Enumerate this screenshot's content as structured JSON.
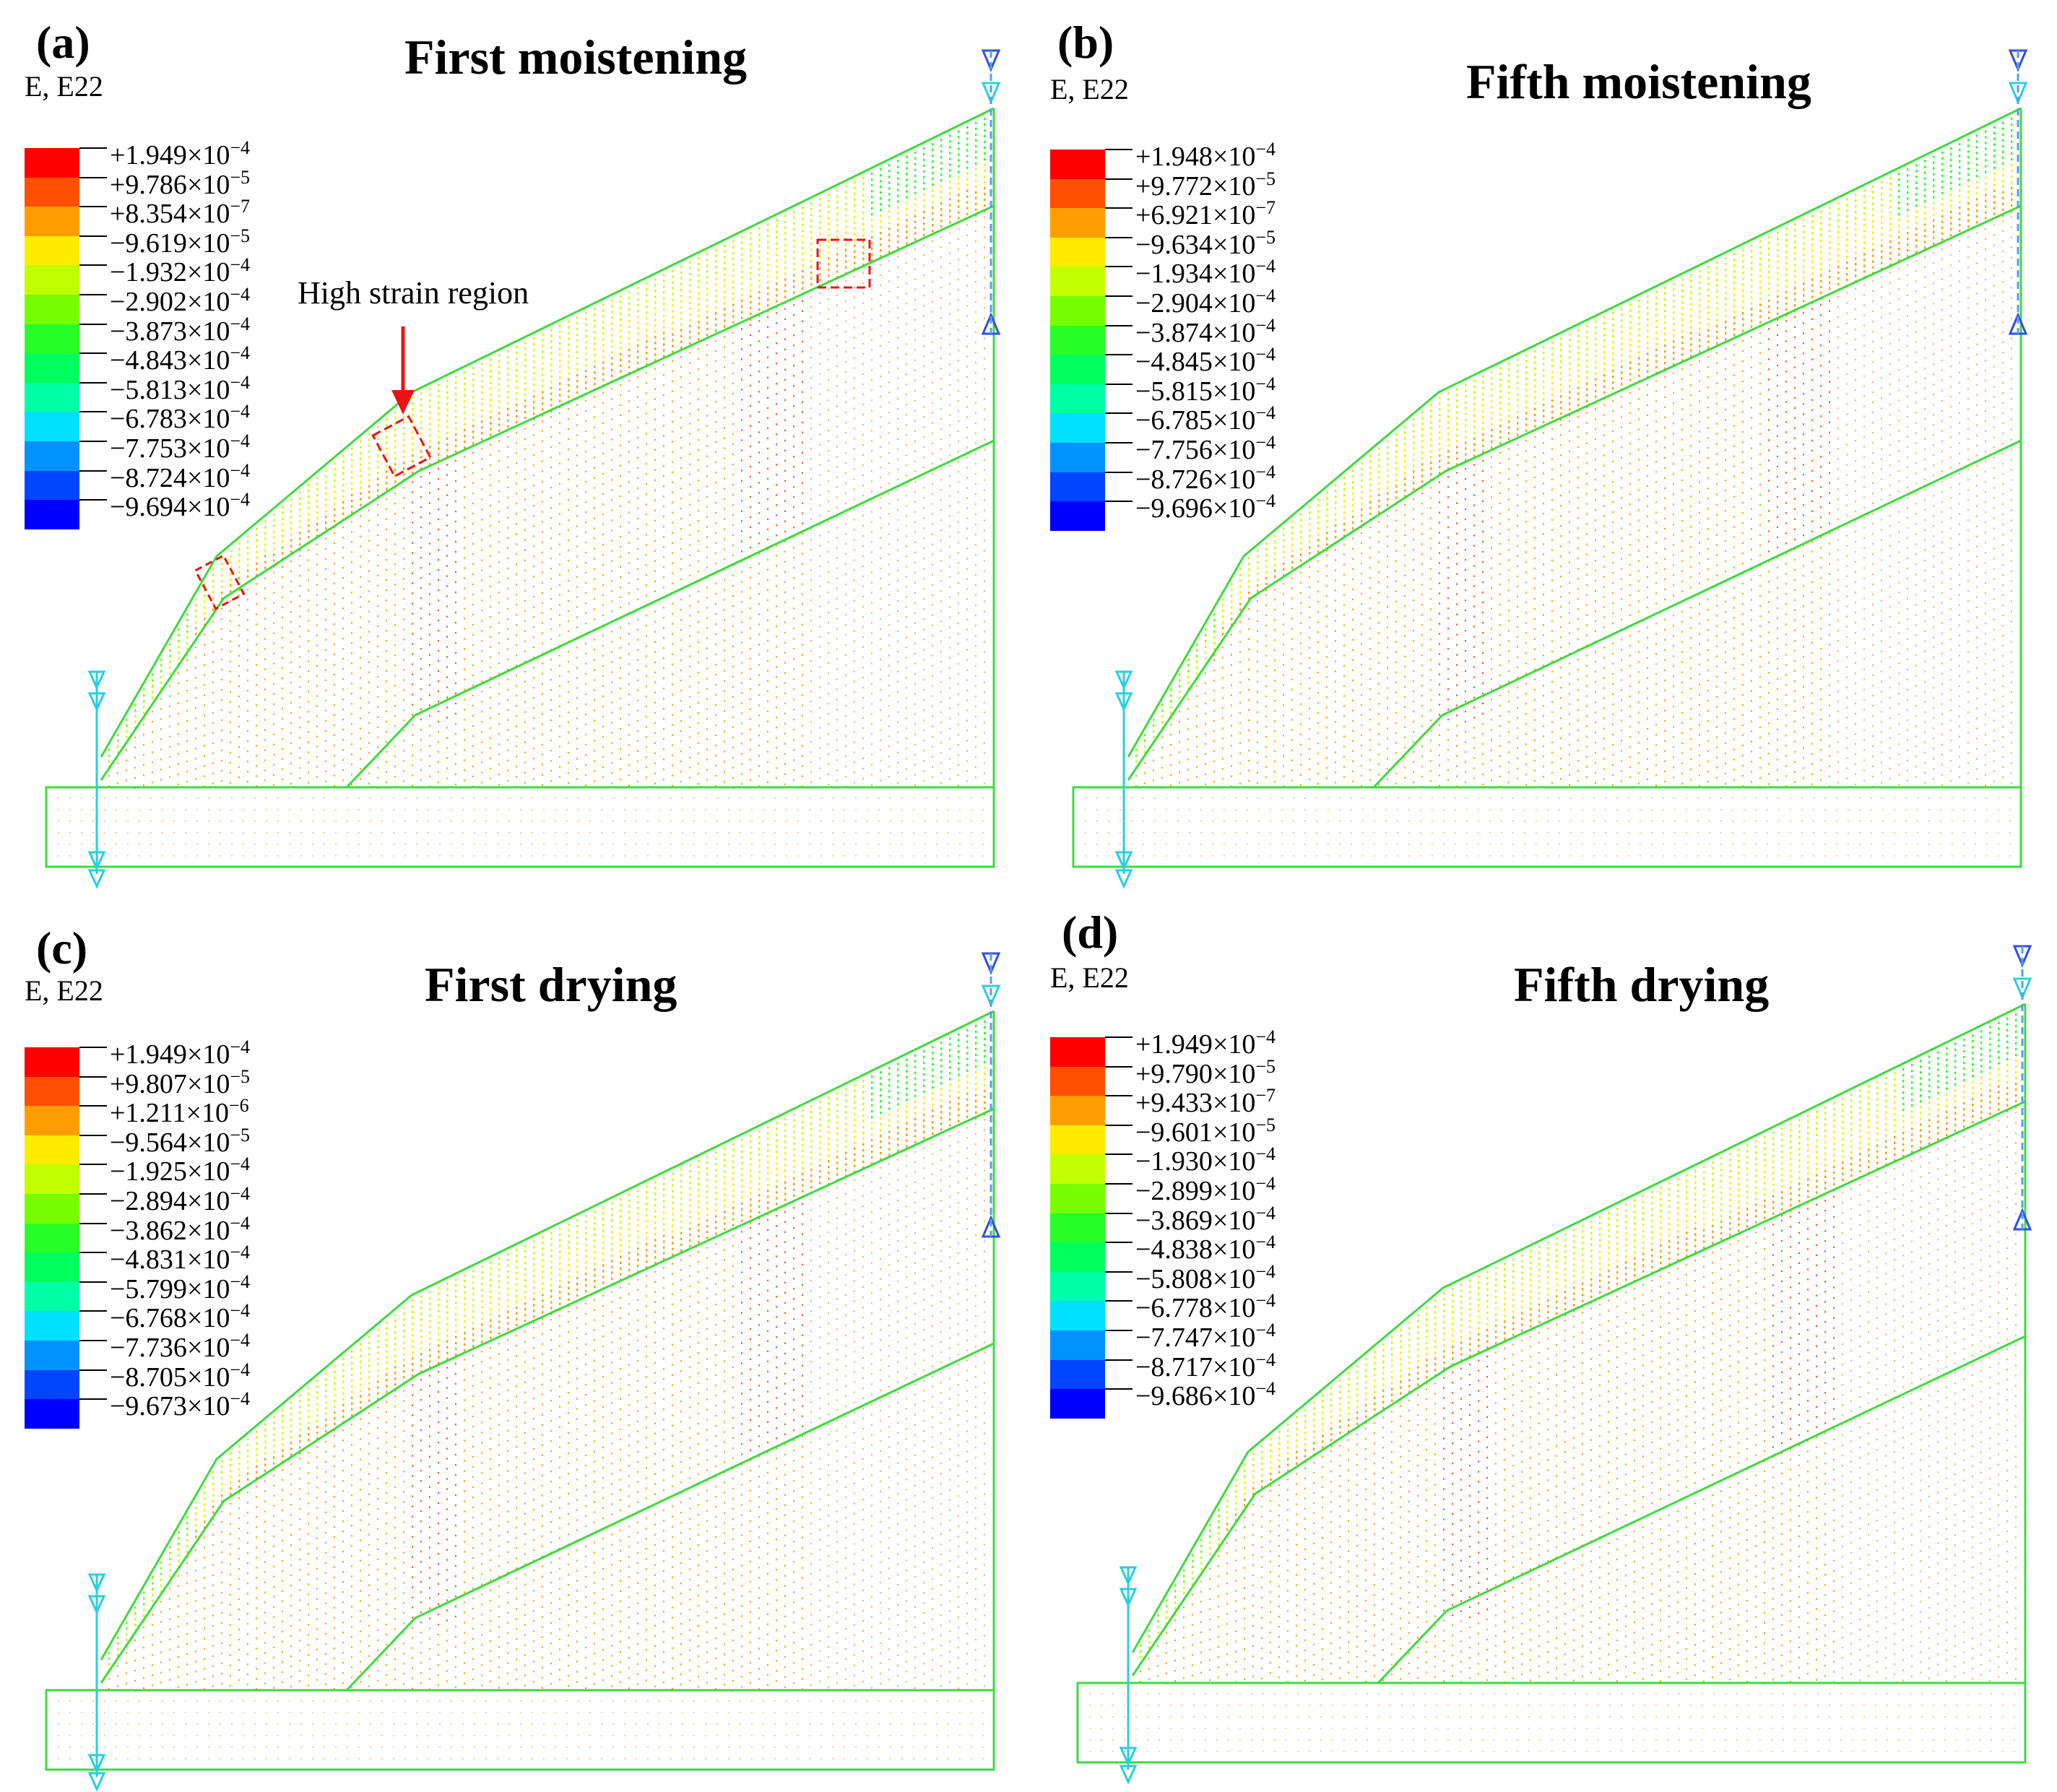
{
  "figure": {
    "variable_label": "E, E22",
    "colors": {
      "legend": [
        "#ff0000",
        "#ff4f00",
        "#ff9d00",
        "#ffeb00",
        "#c4ff00",
        "#75ff00",
        "#27ff27",
        "#00ff5a",
        "#00ffa7",
        "#00e0ff",
        "#0093ff",
        "#0045ff",
        "#0000ff"
      ],
      "outline": "#3cdc3c",
      "highlight_box": "#e81414"
    },
    "panels": [
      {
        "label": "(a)",
        "title": "First moistening",
        "legend_ticks": [
          {
            "mantissa": "+1.949",
            "exponent": "−4"
          },
          {
            "mantissa": "+9.786",
            "exponent": "−5"
          },
          {
            "mantissa": "+8.354",
            "exponent": "−7"
          },
          {
            "mantissa": "−9.619",
            "exponent": "−5"
          },
          {
            "mantissa": "−1.932",
            "exponent": "−4"
          },
          {
            "mantissa": "−2.902",
            "exponent": "−4"
          },
          {
            "mantissa": "−3.873",
            "exponent": "−4"
          },
          {
            "mantissa": "−4.843",
            "exponent": "−4"
          },
          {
            "mantissa": "−5.813",
            "exponent": "−4"
          },
          {
            "mantissa": "−6.783",
            "exponent": "−4"
          },
          {
            "mantissa": "−7.753",
            "exponent": "−4"
          },
          {
            "mantissa": "−8.724",
            "exponent": "−4"
          },
          {
            "mantissa": "−9.694",
            "exponent": "−4"
          }
        ],
        "annotation": "High strain region"
      },
      {
        "label": "(b)",
        "title": "Fifth moistening",
        "legend_ticks": [
          {
            "mantissa": "+1.948",
            "exponent": "−4"
          },
          {
            "mantissa": "+9.772",
            "exponent": "−5"
          },
          {
            "mantissa": "+6.921",
            "exponent": "−7"
          },
          {
            "mantissa": "−9.634",
            "exponent": "−5"
          },
          {
            "mantissa": "−1.934",
            "exponent": "−4"
          },
          {
            "mantissa": "−2.904",
            "exponent": "−4"
          },
          {
            "mantissa": "−3.874",
            "exponent": "−4"
          },
          {
            "mantissa": "−4.845",
            "exponent": "−4"
          },
          {
            "mantissa": "−5.815",
            "exponent": "−4"
          },
          {
            "mantissa": "−6.785",
            "exponent": "−4"
          },
          {
            "mantissa": "−7.756",
            "exponent": "−4"
          },
          {
            "mantissa": "−8.726",
            "exponent": "−4"
          },
          {
            "mantissa": "−9.696",
            "exponent": "−4"
          }
        ]
      },
      {
        "label": "(c)",
        "title": "First drying",
        "legend_ticks": [
          {
            "mantissa": "+1.949",
            "exponent": "−4"
          },
          {
            "mantissa": "+9.807",
            "exponent": "−5"
          },
          {
            "mantissa": "+1.211",
            "exponent": "−6"
          },
          {
            "mantissa": "−9.564",
            "exponent": "−5"
          },
          {
            "mantissa": "−1.925",
            "exponent": "−4"
          },
          {
            "mantissa": "−2.894",
            "exponent": "−4"
          },
          {
            "mantissa": "−3.862",
            "exponent": "−4"
          },
          {
            "mantissa": "−4.831",
            "exponent": "−4"
          },
          {
            "mantissa": "−5.799",
            "exponent": "−4"
          },
          {
            "mantissa": "−6.768",
            "exponent": "−4"
          },
          {
            "mantissa": "−7.736",
            "exponent": "−4"
          },
          {
            "mantissa": "−8.705",
            "exponent": "−4"
          },
          {
            "mantissa": "−9.673",
            "exponent": "−4"
          }
        ]
      },
      {
        "label": "(d)",
        "title": "Fifth drying",
        "legend_ticks": [
          {
            "mantissa": "+1.949",
            "exponent": "−4"
          },
          {
            "mantissa": "+9.790",
            "exponent": "−5"
          },
          {
            "mantissa": "+9.433",
            "exponent": "−7"
          },
          {
            "mantissa": "−9.601",
            "exponent": "−5"
          },
          {
            "mantissa": "−1.930",
            "exponent": "−4"
          },
          {
            "mantissa": "−2.899",
            "exponent": "−4"
          },
          {
            "mantissa": "−3.869",
            "exponent": "−4"
          },
          {
            "mantissa": "−4.838",
            "exponent": "−4"
          },
          {
            "mantissa": "−5.808",
            "exponent": "−4"
          },
          {
            "mantissa": "−6.778",
            "exponent": "−4"
          },
          {
            "mantissa": "−7.747",
            "exponent": "−4"
          },
          {
            "mantissa": "−8.717",
            "exponent": "−4"
          },
          {
            "mantissa": "−9.686",
            "exponent": "−4"
          }
        ]
      }
    ]
  }
}
